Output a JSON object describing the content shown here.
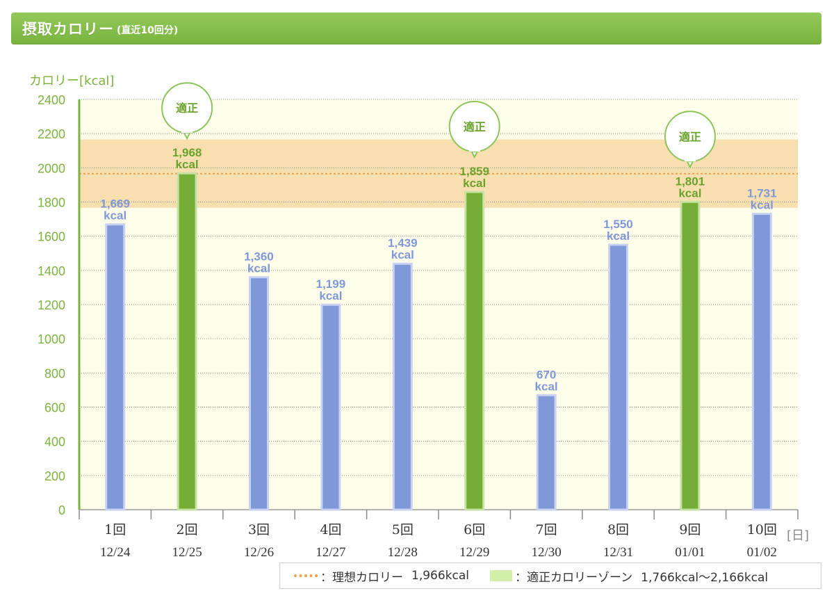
{
  "header": {
    "title": "摂取カロリー",
    "subtitle": "(直近10回分)"
  },
  "legend": {
    "ideal_label": "：理想カロリー",
    "ideal_value": "1,966kcal",
    "zone_label": "：適正カロリーゾーン",
    "zone_value": "1,766kcal〜2,166kcal"
  },
  "colors": {
    "header": "#84be4b",
    "bar_normal": "#7f98d8",
    "bar_proper": "#75ad36",
    "label_normal": "#7f98d8",
    "label_proper": "#6aa22c",
    "axis": "#7bb33e",
    "zone": "#f7d9a6",
    "ideal_line": "#f0a14a",
    "plot_bg": "#fefde9"
  },
  "chart_data": {
    "type": "bar",
    "ylabel": "カロリー[kcal]",
    "xlabel": "[日]",
    "ylim": [
      0,
      2400
    ],
    "yticks": [
      0,
      200,
      400,
      600,
      800,
      1000,
      1200,
      1400,
      1600,
      1800,
      2000,
      2200,
      2400
    ],
    "grid": true,
    "categories": [
      "1回",
      "2回",
      "3回",
      "4回",
      "5回",
      "6回",
      "7回",
      "8回",
      "9回",
      "10回"
    ],
    "dates": [
      "12/24",
      "12/25",
      "12/26",
      "12/27",
      "12/28",
      "12/29",
      "12/30",
      "12/31",
      "01/01",
      "01/02"
    ],
    "values": [
      1669,
      1968,
      1360,
      1199,
      1439,
      1859,
      670,
      1550,
      1801,
      1731
    ],
    "value_labels": [
      "1,669",
      "1,968",
      "1,360",
      "1,199",
      "1,439",
      "1,859",
      "670",
      "1,550",
      "1,801",
      "1,731"
    ],
    "unit": "kcal",
    "proper": [
      false,
      true,
      false,
      false,
      false,
      true,
      false,
      false,
      true,
      false
    ],
    "badge_text": "適正",
    "ideal": 1966,
    "zone": [
      1766,
      2166
    ]
  }
}
